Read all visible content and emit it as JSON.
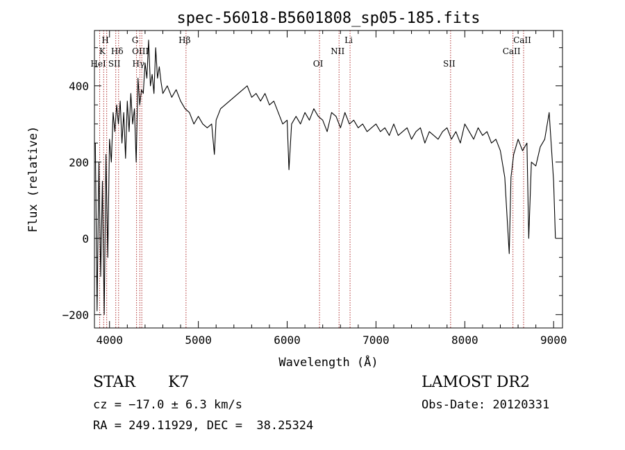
{
  "chart_data": {
    "type": "line",
    "title": "spec-56018-B5601808_sp05-185.fits",
    "xlabel": "Wavelength (Å)",
    "ylabel": "Flux (relative)",
    "xlim": [
      3830,
      9100
    ],
    "ylim": [
      -235,
      545
    ],
    "x_ticks": [
      4000,
      5000,
      6000,
      7000,
      8000,
      9000
    ],
    "y_ticks": [
      -200,
      0,
      200,
      400
    ],
    "grid": false,
    "line_color": "#000000",
    "marker_color": "#b03030",
    "series": [
      {
        "x": [
          3840,
          3860,
          3880,
          3900,
          3920,
          3940,
          3960,
          3980,
          4000,
          4020,
          4040,
          4060,
          4080,
          4100,
          4120,
          4140,
          4160,
          4180,
          4200,
          4220,
          4240,
          4260,
          4280,
          4300,
          4320,
          4340,
          4360,
          4380,
          4400,
          4420,
          4440,
          4460,
          4480,
          4500,
          4520,
          4540,
          4560,
          4580,
          4600,
          4650,
          4700,
          4750,
          4800,
          4850,
          4900,
          4950,
          5000,
          5050,
          5100,
          5150,
          5180,
          5200,
          5250,
          5300,
          5350,
          5400,
          5450,
          5500,
          5550,
          5600,
          5650,
          5700,
          5750,
          5800,
          5850,
          5900,
          5950,
          6000,
          6020,
          6050,
          6100,
          6150,
          6200,
          6250,
          6300,
          6350,
          6400,
          6450,
          6500,
          6550,
          6600,
          6650,
          6700,
          6750,
          6800,
          6850,
          6900,
          6950,
          7000,
          7050,
          7100,
          7150,
          7200,
          7250,
          7300,
          7350,
          7400,
          7450,
          7500,
          7550,
          7600,
          7650,
          7700,
          7750,
          7800,
          7850,
          7900,
          7950,
          8000,
          8050,
          8100,
          8150,
          8200,
          8250,
          8300,
          8350,
          8400,
          8450,
          8480,
          8500,
          8520,
          8550,
          8600,
          8650,
          8700,
          8720,
          8750,
          8800,
          8850,
          8900,
          8950,
          9000,
          9020
        ],
        "y": [
          250,
          -190,
          200,
          -100,
          150,
          -200,
          220,
          -50,
          260,
          200,
          330,
          280,
          350,
          300,
          360,
          250,
          330,
          210,
          360,
          280,
          380,
          300,
          340,
          200,
          420,
          350,
          390,
          380,
          460,
          420,
          520,
          400,
          430,
          380,
          500,
          420,
          450,
          410,
          380,
          400,
          370,
          390,
          360,
          340,
          330,
          300,
          320,
          300,
          290,
          300,
          220,
          310,
          340,
          350,
          360,
          370,
          380,
          390,
          400,
          370,
          380,
          360,
          380,
          350,
          360,
          330,
          300,
          310,
          180,
          300,
          320,
          300,
          330,
          310,
          340,
          320,
          310,
          280,
          330,
          320,
          290,
          330,
          300,
          310,
          290,
          300,
          280,
          290,
          300,
          280,
          290,
          270,
          300,
          270,
          280,
          290,
          260,
          280,
          290,
          250,
          280,
          270,
          260,
          280,
          290,
          260,
          280,
          250,
          300,
          280,
          260,
          290,
          270,
          280,
          250,
          260,
          230,
          160,
          40,
          -40,
          160,
          220,
          260,
          230,
          250,
          0,
          200,
          190,
          240,
          260,
          330,
          150,
          0
        ]
      }
    ],
    "line_markers": [
      {
        "label": "HeI",
        "x": 3889,
        "row": 3
      },
      {
        "label": "K",
        "x": 3934,
        "row": 2
      },
      {
        "label": "H",
        "x": 3968,
        "row": 1
      },
      {
        "label": "SII",
        "x": 4070,
        "row": 3
      },
      {
        "label": "Hδ",
        "x": 4102,
        "row": 2
      },
      {
        "label": "G",
        "x": 4304,
        "row": 1
      },
      {
        "label": "Hγ",
        "x": 4341,
        "row": 3
      },
      {
        "label": "OIII",
        "x": 4363,
        "row": 2
      },
      {
        "label": "Hβ",
        "x": 4861,
        "row": 1
      },
      {
        "label": "OI",
        "x": 6364,
        "row": 3
      },
      {
        "label": "NII",
        "x": 6584,
        "row": 2
      },
      {
        "label": "Li",
        "x": 6708,
        "row": 1
      },
      {
        "label": "SII",
        "x": 7840,
        "row": 3
      },
      {
        "label": "CaII",
        "x": 8542,
        "row": 2
      },
      {
        "label": "CaII",
        "x": 8662,
        "row": 1
      }
    ]
  },
  "info": {
    "object_class": "STAR",
    "subclass": "K7",
    "survey": "LAMOST DR2",
    "redshift": "cz = −17.0 ± 6.3 km/s",
    "obs_date": "Obs-Date: 20120331",
    "coords": "RA = 249.11929, DEC =  38.25324"
  }
}
